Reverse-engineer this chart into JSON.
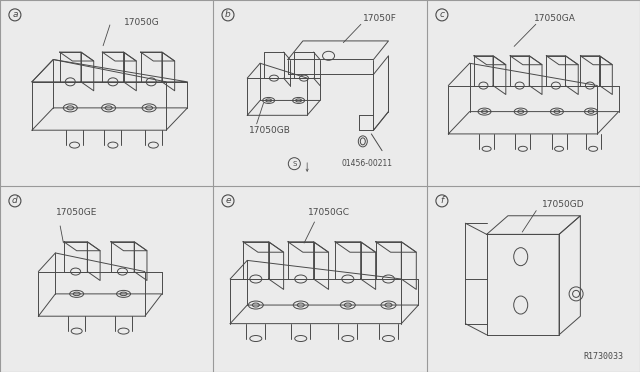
{
  "bg_color": "#ebebeb",
  "line_color": "#4a4a4a",
  "line_width": 0.7,
  "grid_color": "#999999",
  "footer": "R1730033",
  "font_size_label": 6.5,
  "font_size_id": 7,
  "font_size_footer": 6,
  "col_splits": [
    0,
    213,
    427,
    640
  ],
  "row_splits": [
    0,
    186,
    372
  ],
  "panel_labels": {
    "a": "17050G",
    "b": "17050F",
    "c": "17050GA",
    "d": "17050GE",
    "e": "17050GC",
    "f": "17050GD"
  }
}
